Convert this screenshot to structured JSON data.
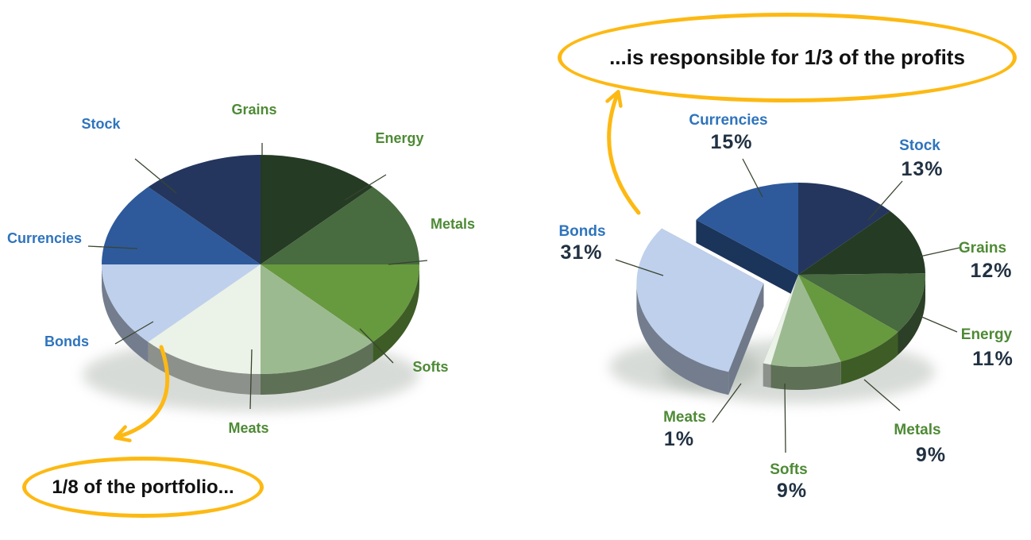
{
  "page": {
    "background": "#ffffff"
  },
  "colors": {
    "category_colors": {
      "Stock": "#24365e",
      "Grains": "#253b24",
      "Energy": "#486b40",
      "Metals": "#67993f",
      "Softs": "#9cba90",
      "Meats": "#ebf2e7",
      "Bonds": "#bfd0ec",
      "Currencies": "#2e5a9c"
    },
    "label_blue": "#2e74bd",
    "label_green": "#4e8a35",
    "pct_text": "#213142",
    "annotation_yellow": "#fdb913",
    "leader_line": "#39452f"
  },
  "chart_data": [
    {
      "type": "pie",
      "variant": "3d",
      "title": "",
      "start_angle_deg": 0,
      "direction": "clockwise",
      "legend_position": "none",
      "slices": [
        {
          "label": "Grains",
          "value": 12.5,
          "color": "#253b24",
          "label_color": "green",
          "exploded": false
        },
        {
          "label": "Energy",
          "value": 12.5,
          "color": "#486b40",
          "label_color": "green",
          "exploded": false
        },
        {
          "label": "Metals",
          "value": 12.5,
          "color": "#67993f",
          "label_color": "green",
          "exploded": false
        },
        {
          "label": "Softs",
          "value": 12.5,
          "color": "#9cba90",
          "label_color": "green",
          "exploded": false
        },
        {
          "label": "Meats",
          "value": 12.5,
          "color": "#ebf2e7",
          "label_color": "green",
          "exploded": false
        },
        {
          "label": "Bonds",
          "value": 12.5,
          "color": "#bfd0ec",
          "label_color": "blue",
          "exploded": false
        },
        {
          "label": "Currencies",
          "value": 12.5,
          "color": "#2e5a9c",
          "label_color": "blue",
          "exploded": false
        },
        {
          "label": "Stock",
          "value": 12.5,
          "color": "#24365e",
          "label_color": "blue",
          "exploded": false
        }
      ],
      "annotation": {
        "text": "1/8 of the portfolio...",
        "target_slice": "Bonds"
      }
    },
    {
      "type": "pie",
      "variant": "3d-exploded",
      "title": "",
      "start_angle_deg": 0,
      "direction": "clockwise",
      "legend_position": "none",
      "slices": [
        {
          "label": "Stock",
          "value": 13,
          "pct_label": "13%",
          "color": "#24365e",
          "label_color": "blue",
          "exploded": false
        },
        {
          "label": "Grains",
          "value": 12,
          "pct_label": "12%",
          "color": "#253b24",
          "label_color": "green",
          "exploded": false
        },
        {
          "label": "Energy",
          "value": 11,
          "pct_label": "11%",
          "color": "#486b40",
          "label_color": "green",
          "exploded": false
        },
        {
          "label": "Metals",
          "value": 9,
          "pct_label": "9%",
          "color": "#67993f",
          "label_color": "green",
          "exploded": false
        },
        {
          "label": "Softs",
          "value": 9,
          "pct_label": "9%",
          "color": "#9cba90",
          "label_color": "green",
          "exploded": false
        },
        {
          "label": "Meats",
          "value": 1,
          "pct_label": "1%",
          "color": "#ebf2e7",
          "label_color": "green",
          "exploded": false
        },
        {
          "label": "Bonds",
          "value": 31,
          "pct_label": "31%",
          "color": "#bfd0ec",
          "label_color": "blue",
          "exploded": true
        },
        {
          "label": "Currencies",
          "value": 15,
          "pct_label": "15%",
          "color": "#2e5a9c",
          "label_color": "blue",
          "exploded": false
        }
      ],
      "annotation": {
        "text": "...is responsible for 1/3 of the profits",
        "target_slice": "Bonds"
      }
    }
  ]
}
